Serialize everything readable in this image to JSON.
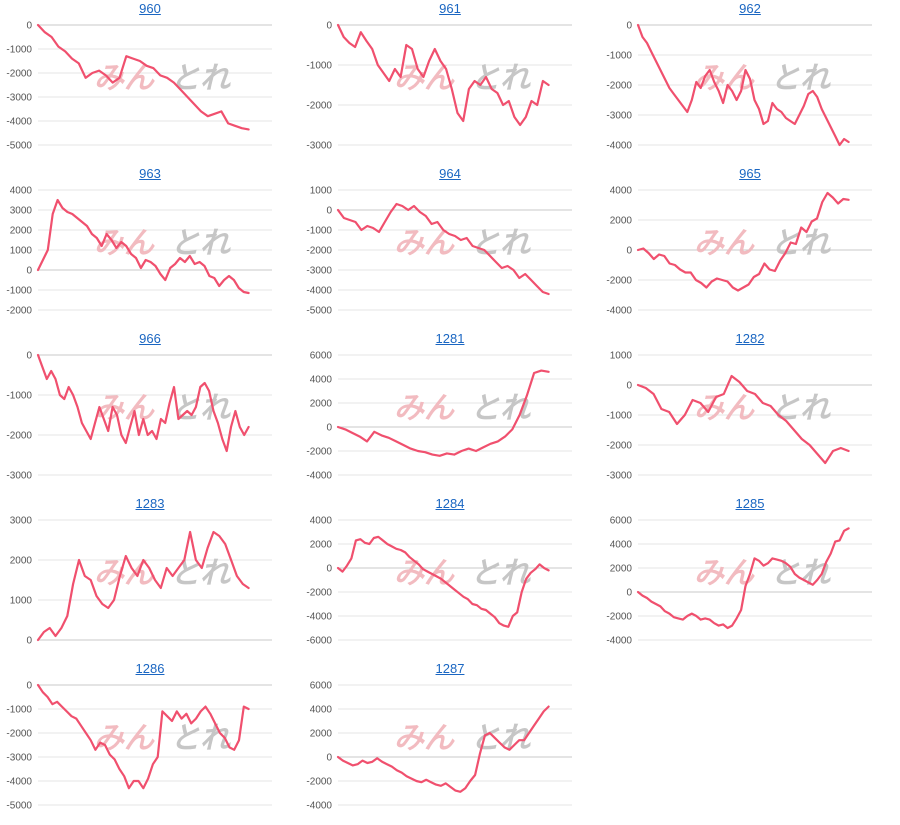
{
  "colors": {
    "line": "#f0506e",
    "grid": "#e6e6e6",
    "zero_line": "#c8c8c8",
    "title": "#1a66c2",
    "watermark_pink": "#f2b8bd",
    "watermark_gray": "#c4c4c4"
  },
  "watermark": {
    "left": "みん",
    "right": "とれ"
  },
  "chart_data": [
    {
      "type": "line",
      "title": "960",
      "ylim": [
        -5000,
        0
      ],
      "yticks": [
        0,
        -1000,
        -2000,
        -3000,
        -4000,
        -5000
      ],
      "values": [
        0,
        -300,
        -500,
        -900,
        -1100,
        -1400,
        -1600,
        -2200,
        -2000,
        -1900,
        -2100,
        -2400,
        -2200,
        -1300,
        -1400,
        -1500,
        -1700,
        -1800,
        -2100,
        -2200,
        -2400,
        -2700,
        -3000,
        -3300,
        -3600,
        -3800,
        -3700,
        -3600,
        -4100,
        -4200,
        -4300,
        -4350
      ]
    },
    {
      "type": "line",
      "title": "961",
      "ylim": [
        -3000,
        0
      ],
      "yticks": [
        0,
        -1000,
        -2000,
        -3000
      ],
      "values": [
        0,
        -300,
        -450,
        -550,
        -180,
        -400,
        -600,
        -1000,
        -1200,
        -1400,
        -1100,
        -1300,
        -500,
        -600,
        -1100,
        -1300,
        -900,
        -600,
        -900,
        -1100,
        -1600,
        -2200,
        -2400,
        -1600,
        -1400,
        -1500,
        -1300,
        -1600,
        -1700,
        -2000,
        -1900,
        -2300,
        -2500,
        -2300,
        -1900,
        -2000,
        -1400,
        -1500
      ]
    },
    {
      "type": "line",
      "title": "962",
      "ylim": [
        -4000,
        0
      ],
      "yticks": [
        0,
        -1000,
        -2000,
        -3000,
        -4000
      ],
      "values": [
        0,
        -400,
        -600,
        -900,
        -1200,
        -1500,
        -1800,
        -2100,
        -2300,
        -2500,
        -2700,
        -2900,
        -2500,
        -1900,
        -2100,
        -1700,
        -1500,
        -1900,
        -2200,
        -2600,
        -2000,
        -2200,
        -2500,
        -2200,
        -1500,
        -1800,
        -2500,
        -2800,
        -3300,
        -3200,
        -2600,
        -2800,
        -2900,
        -3100,
        -3200,
        -3300,
        -3000,
        -2700,
        -2300,
        -2200,
        -2400,
        -2800,
        -3100,
        -3400,
        -3700,
        -4000,
        -3800,
        -3900
      ]
    },
    {
      "type": "line",
      "title": "963",
      "ylim": [
        -2000,
        4000
      ],
      "yticks": [
        4000,
        3000,
        2000,
        1000,
        0,
        -1000,
        -2000
      ],
      "values": [
        0,
        500,
        1000,
        2800,
        3500,
        3100,
        2900,
        2800,
        2600,
        2400,
        2200,
        1800,
        1600,
        1200,
        1800,
        1500,
        1100,
        1400,
        1200,
        800,
        600,
        100,
        500,
        400,
        200,
        -200,
        -500,
        100,
        300,
        600,
        400,
        700,
        300,
        400,
        200,
        -300,
        -400,
        -800,
        -500,
        -300,
        -500,
        -900,
        -1100,
        -1150
      ]
    },
    {
      "type": "line",
      "title": "964",
      "ylim": [
        -5000,
        1000
      ],
      "yticks": [
        1000,
        0,
        -1000,
        -2000,
        -3000,
        -4000,
        -5000
      ],
      "values": [
        0,
        -400,
        -500,
        -600,
        -1000,
        -800,
        -900,
        -1100,
        -600,
        -100,
        300,
        200,
        0,
        200,
        -100,
        -300,
        -700,
        -600,
        -1000,
        -1200,
        -1300,
        -1500,
        -1400,
        -1800,
        -1900,
        -2000,
        -2300,
        -2600,
        -2900,
        -2800,
        -3000,
        -3400,
        -3200,
        -3500,
        -3800,
        -4100,
        -4200
      ]
    },
    {
      "type": "line",
      "title": "965",
      "ylim": [
        -4000,
        4000
      ],
      "yticks": [
        4000,
        2000,
        0,
        -2000,
        -4000
      ],
      "values": [
        0,
        100,
        -200,
        -600,
        -300,
        -400,
        -900,
        -1000,
        -1300,
        -1500,
        -1500,
        -2000,
        -2200,
        -2500,
        -2100,
        -1900,
        -2000,
        -2100,
        -2500,
        -2700,
        -2500,
        -2300,
        -1800,
        -1600,
        -900,
        -1300,
        -1400,
        -700,
        -200,
        500,
        400,
        1500,
        1200,
        1900,
        2100,
        3200,
        3800,
        3500,
        3100,
        3400,
        3350
      ]
    },
    {
      "type": "line",
      "title": "966",
      "ylim": [
        -3000,
        0
      ],
      "yticks": [
        0,
        -1000,
        -2000,
        -3000
      ],
      "values": [
        0,
        -300,
        -600,
        -400,
        -600,
        -1000,
        -1100,
        -800,
        -1000,
        -1300,
        -1700,
        -1900,
        -2100,
        -1700,
        -1300,
        -1600,
        -1900,
        -1300,
        -1500,
        -2000,
        -2200,
        -1800,
        -1400,
        -2000,
        -1600,
        -2000,
        -1900,
        -2100,
        -1600,
        -1700,
        -1200,
        -800,
        -1600,
        -1500,
        -1400,
        -1500,
        -1300,
        -800,
        -700,
        -900,
        -1400,
        -1700,
        -2100,
        -2400,
        -1800,
        -1400,
        -1800,
        -2000,
        -1800
      ]
    },
    {
      "type": "line",
      "title": "1281",
      "ylim": [
        -4000,
        6000
      ],
      "yticks": [
        6000,
        4000,
        2000,
        0,
        -2000,
        -4000
      ],
      "values": [
        0,
        -200,
        -500,
        -800,
        -1200,
        -400,
        -700,
        -900,
        -1200,
        -1500,
        -1800,
        -2000,
        -2100,
        -2300,
        -2400,
        -2200,
        -2300,
        -2000,
        -1800,
        -2000,
        -1700,
        -1400,
        -1200,
        -800,
        -200,
        1000,
        2600,
        4500,
        4700,
        4600
      ]
    },
    {
      "type": "line",
      "title": "1282",
      "ylim": [
        -3000,
        1000
      ],
      "yticks": [
        1000,
        0,
        -1000,
        -2000,
        -3000
      ],
      "values": [
        0,
        -100,
        -300,
        -800,
        -900,
        -1300,
        -1000,
        -500,
        -600,
        -900,
        -400,
        -300,
        300,
        100,
        -200,
        -300,
        -600,
        -700,
        -1000,
        -1200,
        -1500,
        -1800,
        -2000,
        -2300,
        -2600,
        -2200,
        -2100,
        -2200
      ]
    },
    {
      "type": "line",
      "title": "1283",
      "ylim": [
        0,
        3000
      ],
      "yticks": [
        3000,
        2000,
        1000,
        0
      ],
      "values": [
        0,
        200,
        300,
        100,
        300,
        600,
        1400,
        2000,
        1600,
        1500,
        1100,
        900,
        800,
        1000,
        1600,
        2100,
        1800,
        1600,
        2000,
        1800,
        1500,
        1300,
        1800,
        1600,
        1800,
        2000,
        2700,
        2000,
        1800,
        2300,
        2700,
        2600,
        2400,
        2000,
        1600,
        1400,
        1300
      ]
    },
    {
      "type": "line",
      "title": "1284",
      "ylim": [
        -6000,
        4000
      ],
      "yticks": [
        4000,
        2000,
        0,
        -2000,
        -4000,
        -6000
      ],
      "values": [
        0,
        -300,
        200,
        800,
        2300,
        2400,
        2100,
        2000,
        2500,
        2600,
        2300,
        2000,
        1800,
        1600,
        1500,
        1300,
        900,
        600,
        300,
        -100,
        -300,
        -500,
        -700,
        -900,
        -1200,
        -1500,
        -1800,
        -2100,
        -2400,
        -2600,
        -3000,
        -3100,
        -3400,
        -3500,
        -3800,
        -4100,
        -4600,
        -4800,
        -4900,
        -4000,
        -3700,
        -2000,
        -900,
        -400,
        -100,
        300,
        0,
        -200
      ]
    },
    {
      "type": "line",
      "title": "1285",
      "ylim": [
        -4000,
        6000
      ],
      "yticks": [
        6000,
        4000,
        2000,
        0,
        -2000,
        -4000
      ],
      "values": [
        0,
        -300,
        -500,
        -800,
        -1000,
        -1200,
        -1600,
        -1800,
        -2100,
        -2200,
        -2300,
        -2000,
        -1800,
        -2000,
        -2300,
        -2200,
        -2300,
        -2600,
        -2800,
        -2700,
        -3000,
        -2800,
        -2200,
        -1500,
        500,
        1500,
        2800,
        2600,
        2200,
        2400,
        2800,
        2700,
        2600,
        2400,
        2100,
        1500,
        1200,
        1000,
        800,
        600,
        1000,
        1500,
        2500,
        3200,
        4200,
        4300,
        5100,
        5300
      ]
    },
    {
      "type": "line",
      "title": "1286",
      "ylim": [
        -5000,
        0
      ],
      "yticks": [
        0,
        -1000,
        -2000,
        -3000,
        -4000,
        -5000
      ],
      "values": [
        0,
        -300,
        -500,
        -800,
        -700,
        -900,
        -1100,
        -1300,
        -1400,
        -1700,
        -2000,
        -2300,
        -2700,
        -2400,
        -2500,
        -2900,
        -3100,
        -3500,
        -3800,
        -4300,
        -4000,
        -4000,
        -4300,
        -3900,
        -3300,
        -3000,
        -1100,
        -1300,
        -1500,
        -1100,
        -1400,
        -1200,
        -1600,
        -1400,
        -1100,
        -900,
        -1200,
        -1600,
        -2000,
        -2200,
        -2600,
        -2700,
        -2300,
        -900,
        -1000
      ]
    },
    {
      "type": "line",
      "title": "1287",
      "ylim": [
        -4000,
        6000
      ],
      "yticks": [
        6000,
        4000,
        2000,
        0,
        -2000,
        -4000
      ],
      "values": [
        0,
        -300,
        -500,
        -700,
        -600,
        -300,
        -500,
        -400,
        -100,
        -400,
        -600,
        -800,
        -1100,
        -1300,
        -1600,
        -1800,
        -2000,
        -2100,
        -1900,
        -2100,
        -2300,
        -2400,
        -2200,
        -2500,
        -2800,
        -2900,
        -2600,
        -2000,
        -1500,
        300,
        1800,
        2000,
        1600,
        1200,
        800,
        600,
        1000,
        1400,
        1400,
        2000,
        2600,
        3200,
        3800,
        4200
      ]
    }
  ]
}
